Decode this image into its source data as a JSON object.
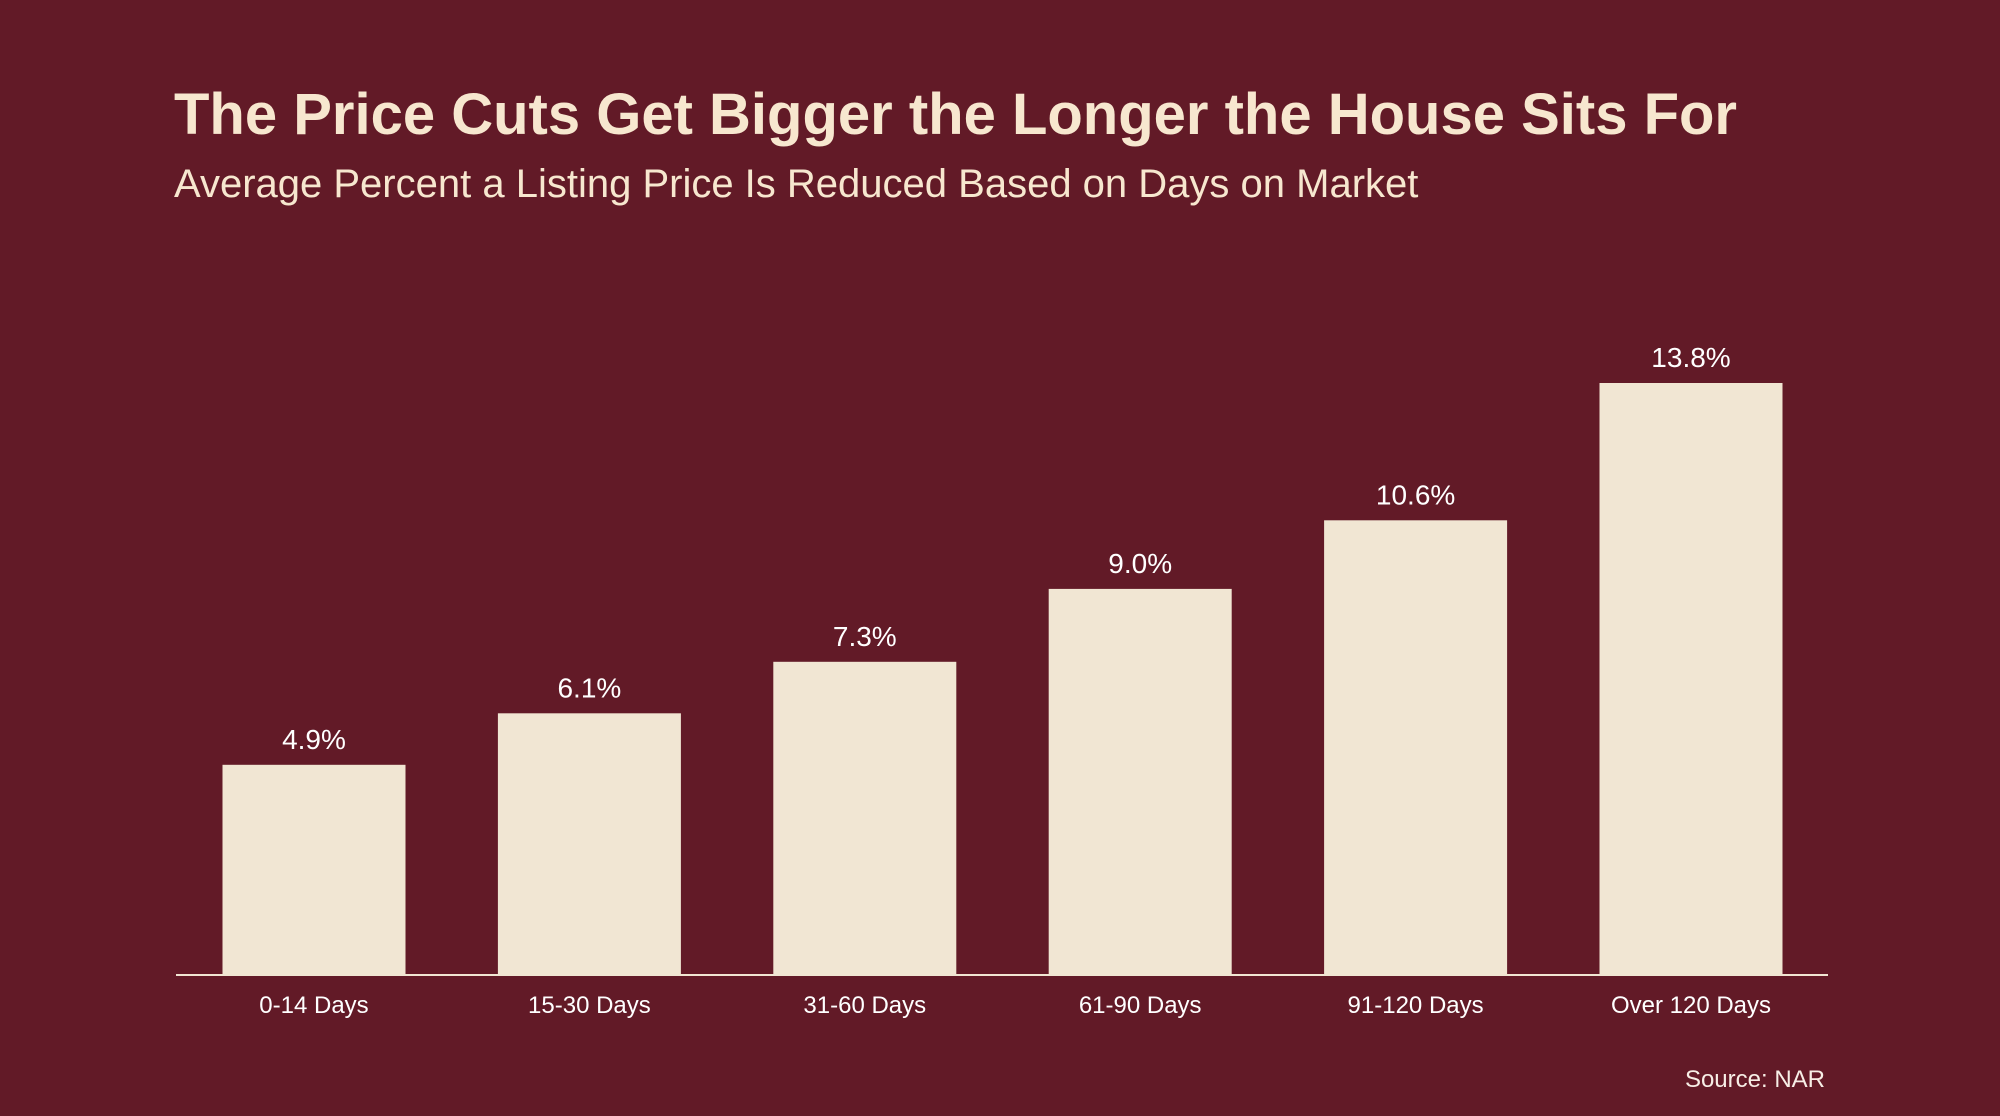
{
  "title": "The Price Cuts Get Bigger the Longer the House Sits For",
  "subtitle": "Average Percent a Listing Price Is Reduced Based on Days on Market",
  "source": "Source: NAR",
  "colors": {
    "background": "#621a27",
    "bar": "#f1e6d3",
    "title_text": "#f7e7cf",
    "label_text": "#ffffff",
    "axis_line": "#f1e6d3"
  },
  "chart_data": {
    "type": "bar",
    "categories": [
      "0-14 Days",
      "15-30 Days",
      "31-60 Days",
      "61-90 Days",
      "91-120 Days",
      "Over 120 Days"
    ],
    "values": [
      4.9,
      6.1,
      7.3,
      9.0,
      10.6,
      13.8
    ],
    "value_labels": [
      "4.9%",
      "6.1%",
      "7.3%",
      "9.0%",
      "10.6%",
      "13.8%"
    ],
    "title": "The Price Cuts Get Bigger the Longer the House Sits For",
    "subtitle": "Average Percent a Listing Price Is Reduced Based on Days on Market",
    "xlabel": "",
    "ylabel": "",
    "ylim": [
      0,
      13.8
    ],
    "grid": false,
    "legend": "none"
  }
}
